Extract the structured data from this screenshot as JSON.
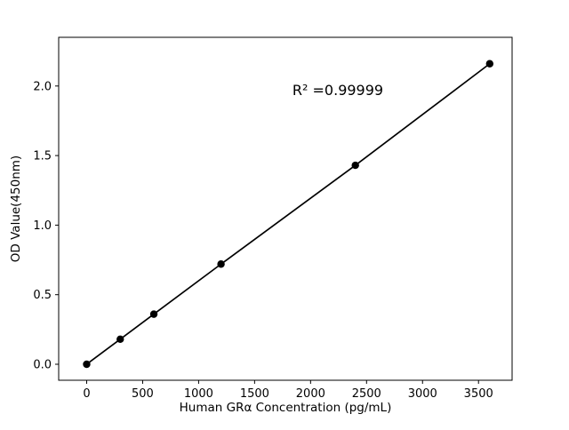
{
  "chart_data": {
    "type": "line",
    "title": "",
    "x": [
      0,
      300,
      600,
      1200,
      2400,
      3600
    ],
    "y": [
      0.0,
      0.18,
      0.36,
      0.72,
      1.43,
      2.16
    ],
    "xlabel": "Human GRα Concentration (pg/mL)",
    "ylabel": "OD Value(450nm)",
    "annotation": "R² =0.99999",
    "xlim": [
      -250,
      3800
    ],
    "ylim": [
      -0.115,
      2.35
    ],
    "xticks": {
      "values": [
        0,
        500,
        1000,
        1500,
        2000,
        2500,
        3000,
        3500
      ],
      "labels": [
        "0",
        "500",
        "1000",
        "1500",
        "2000",
        "2500",
        "3000",
        "3500"
      ]
    },
    "yticks": {
      "values": [
        0.0,
        0.5,
        1.0,
        1.5,
        2.0
      ],
      "labels": [
        "0.0",
        "0.5",
        "1.0",
        "1.5",
        "2.0"
      ]
    },
    "grid": false,
    "legend": "none",
    "line_color": "#000000",
    "marker_color": "#000000",
    "marker_style": "filled-circle",
    "background_color": "#ffffff"
  }
}
